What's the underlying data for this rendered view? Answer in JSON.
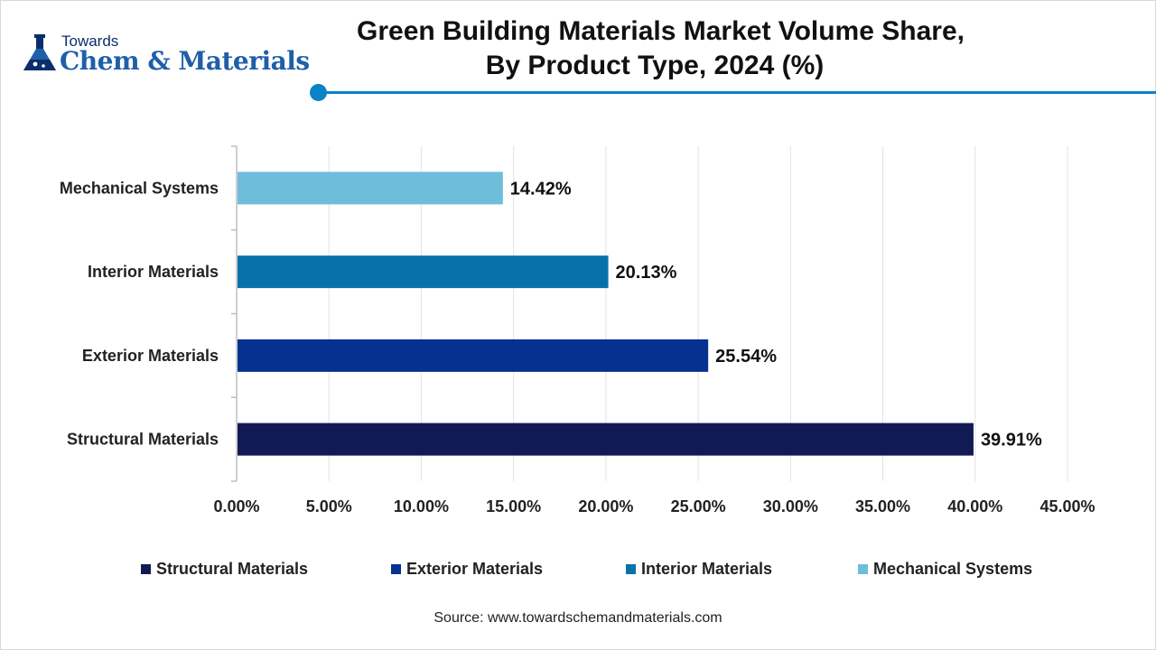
{
  "brand": {
    "top": "Towards",
    "main": "Chem & Materials",
    "color": "#1f5fa9"
  },
  "title_lines": [
    "Green Building Materials Market Volume Share,",
    "By Product Type, 2024 (%)"
  ],
  "accent": "#0a82c6",
  "chart_data": {
    "type": "bar",
    "orientation": "horizontal",
    "categories": [
      "Mechanical Systems",
      "Interior Materials",
      "Exterior Materials",
      "Structural Materials"
    ],
    "values": [
      14.42,
      20.13,
      25.54,
      39.91
    ],
    "value_labels": [
      "14.42%",
      "20.13%",
      "25.54%",
      "39.91%"
    ],
    "colors": [
      "#6dbddb",
      "#0872a8",
      "#063190",
      "#121a55"
    ],
    "xlim": [
      0,
      45
    ],
    "xticks": [
      0,
      5,
      10,
      15,
      20,
      25,
      30,
      35,
      40,
      45
    ],
    "xtick_labels": [
      "0.00%",
      "5.00%",
      "10.00%",
      "15.00%",
      "20.00%",
      "25.00%",
      "30.00%",
      "35.00%",
      "40.00%",
      "45.00%"
    ],
    "grid": true,
    "legend_position": "bottom",
    "legend": [
      {
        "label": "Structural Materials",
        "color": "#121a55"
      },
      {
        "label": "Exterior Materials",
        "color": "#063190"
      },
      {
        "label": "Interior Materials",
        "color": "#0872a8"
      },
      {
        "label": "Mechanical Systems",
        "color": "#6dbddb"
      }
    ]
  },
  "source": "Source: www.towardschemandmaterials.com"
}
